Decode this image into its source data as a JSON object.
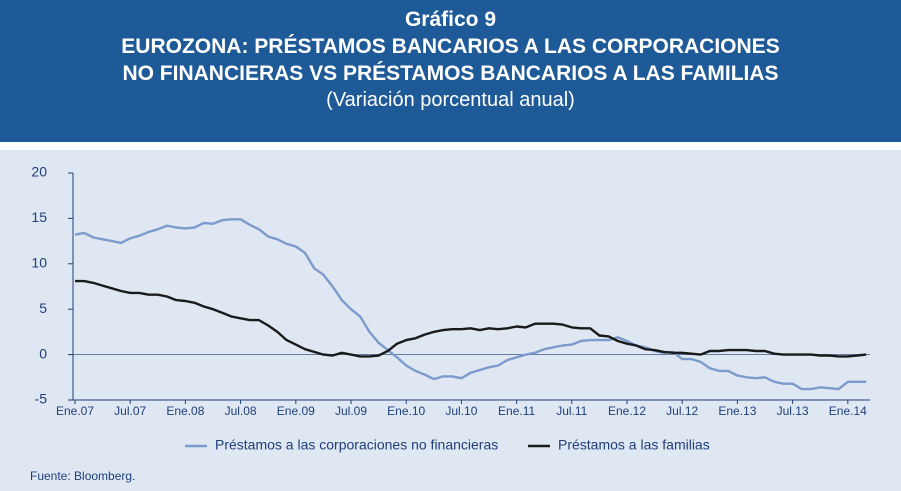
{
  "supertitle": "Gráfico 9",
  "title": [
    "EUROZONA:  PRÉSTAMOS BANCARIOS A LAS CORPORACIONES",
    "NO FINANCIERAS VS PRÉSTAMOS BANCARIOS A LAS FAMILIAS"
  ],
  "subtitle": "(Variación porcentual anual)",
  "source": "Fuente: Bloomberg.",
  "chart_data": {
    "type": "line",
    "categories": [
      "Ene.07",
      null,
      null,
      null,
      null,
      null,
      "Jul.07",
      null,
      null,
      null,
      null,
      null,
      "Ene.08",
      null,
      null,
      null,
      null,
      null,
      "Jul.08",
      null,
      null,
      null,
      null,
      null,
      "Ene.09",
      null,
      null,
      null,
      null,
      null,
      "Jul.09",
      null,
      null,
      null,
      null,
      null,
      "Ene.10",
      null,
      null,
      null,
      null,
      null,
      "Jul.10",
      null,
      null,
      null,
      null,
      null,
      "Ene.11",
      null,
      null,
      null,
      null,
      null,
      "Jul.11",
      null,
      null,
      null,
      null,
      null,
      "Ene.12",
      null,
      null,
      null,
      null,
      null,
      "Jul.12",
      null,
      null,
      null,
      null,
      null,
      "Ene.13",
      null,
      null,
      null,
      null,
      null,
      "Jul.13",
      null,
      null,
      null,
      null,
      null,
      "Ene.14",
      null,
      null
    ],
    "series": [
      {
        "name": "Préstamos a las corporaciones no financieras",
        "color": "#7c9bcc",
        "values": [
          13.2,
          13.4,
          12.9,
          12.7,
          12.5,
          12.3,
          12.8,
          13.1,
          13.5,
          13.8,
          14.2,
          14.0,
          13.9,
          14.0,
          14.5,
          14.4,
          14.8,
          14.9,
          14.9,
          14.3,
          13.8,
          13.0,
          12.7,
          12.2,
          11.9,
          11.2,
          9.5,
          8.8,
          7.5,
          6.0,
          5.0,
          4.2,
          2.5,
          1.3,
          0.5,
          -0.3,
          -1.2,
          -1.8,
          -2.2,
          -2.7,
          -2.4,
          -2.4,
          -2.6,
          -2.0,
          -1.7,
          -1.4,
          -1.2,
          -0.6,
          -0.3,
          0.0,
          0.2,
          0.6,
          0.8,
          1.0,
          1.1,
          1.5,
          1.6,
          1.6,
          1.6,
          1.9,
          1.5,
          1.0,
          0.8,
          0.4,
          0.2,
          0.3,
          -0.5,
          -0.5,
          -0.8,
          -1.5,
          -1.8,
          -1.8,
          -2.3,
          -2.5,
          -2.6,
          -2.5,
          -3.0,
          -3.2,
          -3.2,
          -3.8,
          -3.8,
          -3.6,
          -3.7,
          -3.8,
          -3.0,
          -3.0,
          -3.0
        ]
      },
      {
        "name": "Préstamos a las familias",
        "color": "#1a1a1a",
        "values": [
          8.1,
          8.1,
          7.9,
          7.6,
          7.3,
          7.0,
          6.8,
          6.8,
          6.6,
          6.6,
          6.4,
          6.0,
          5.9,
          5.7,
          5.3,
          5.0,
          4.6,
          4.2,
          4.0,
          3.8,
          3.8,
          3.2,
          2.5,
          1.6,
          1.1,
          0.6,
          0.3,
          0.0,
          -0.1,
          0.2,
          0.0,
          -0.2,
          -0.2,
          -0.1,
          0.4,
          1.2,
          1.6,
          1.8,
          2.2,
          2.5,
          2.7,
          2.8,
          2.8,
          2.9,
          2.7,
          2.9,
          2.8,
          2.9,
          3.1,
          3.0,
          3.4,
          3.4,
          3.4,
          3.3,
          3.0,
          2.9,
          2.9,
          2.1,
          2.0,
          1.5,
          1.2,
          1.0,
          0.6,
          0.5,
          0.3,
          0.2,
          0.2,
          0.1,
          0.0,
          0.4,
          0.4,
          0.5,
          0.5,
          0.5,
          0.4,
          0.4,
          0.1,
          0.0,
          0.0,
          0.0,
          0.0,
          -0.1,
          -0.1,
          -0.2,
          -0.2,
          -0.1,
          0.0
        ]
      }
    ],
    "ylim": [
      -5,
      20
    ],
    "yticks": [
      -5,
      0,
      5,
      10,
      15,
      20
    ],
    "grid": false,
    "legend": "bottom"
  }
}
